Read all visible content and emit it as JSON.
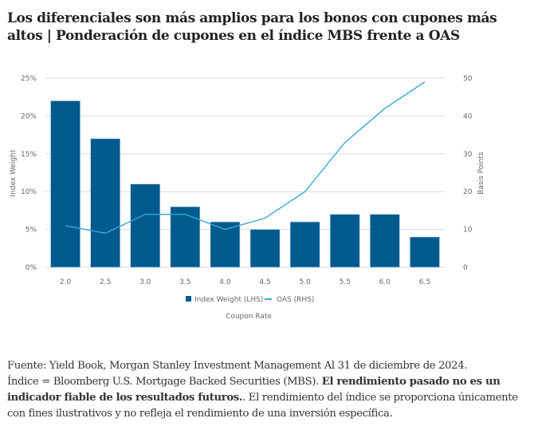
{
  "title": {
    "line1": "Los diferenciales son más amplios para los bonos con cupones más",
    "line2": "altos | Ponderación de cupones en el índice MBS frente a OAS"
  },
  "chart_data": {
    "type": "bar",
    "title": "Los diferenciales son más amplios para los bonos con cupones más altos | Ponderación de cupones en el índice MBS frente a OAS",
    "xlabel": "Coupon Rate",
    "ylabel": "Index Weight",
    "y2label": "Basis Points",
    "categories": [
      "2.0",
      "2.5",
      "3.0",
      "3.5",
      "4.0",
      "4.5",
      "5.0",
      "5.5",
      "6.0",
      "6.5"
    ],
    "ylim": [
      0,
      25
    ],
    "y2lim": [
      0,
      50
    ],
    "yticks": [
      "0%",
      "5%",
      "10%",
      "15%",
      "20%",
      "25%"
    ],
    "y2ticks": [
      "0",
      "10",
      "20",
      "30",
      "40",
      "50"
    ],
    "grid": true,
    "legend_position": "bottom-center",
    "series": [
      {
        "name": "Index Weight (LHS)",
        "type": "bar",
        "axis": "left",
        "unit": "%",
        "color": "#005a8e",
        "values": [
          22,
          17,
          11,
          8,
          6,
          5,
          6,
          7,
          7,
          4
        ]
      },
      {
        "name": "OAS (RHS)",
        "type": "line",
        "axis": "right",
        "unit": "bp",
        "color": "#3aa8d8",
        "values": [
          11,
          9,
          14,
          14,
          10,
          13,
          20,
          33,
          42,
          49
        ]
      }
    ]
  },
  "footer": {
    "source": "Fuente: Yield Book, Morgan Stanley Investment Management Al 31 de diciembre de 2024.",
    "index_def": "Índice = Bloomberg U.S. Mortgage Backed Securities (MBS). ",
    "bold_warning": "El rendimiento pasado no es un indicador fiable de los resultados futuros.",
    "rest": ". El rendimiento del índice se proporciona únicamente con fines ilustrativos y no refleja el rendimiento de una inversión específica."
  }
}
